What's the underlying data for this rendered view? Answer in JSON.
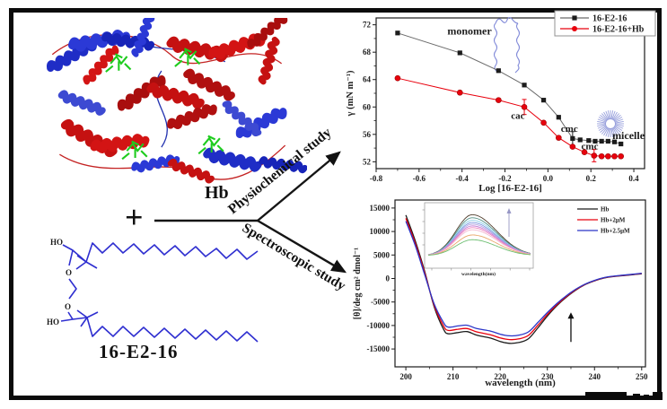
{
  "figure": {
    "hb_label": "Hb",
    "plus_sign": "+",
    "surfactant_label": "16-E2-16",
    "physiochemical_label": "Physiochemical study",
    "spectroscopic_label": "Spectroscopic study",
    "molecule_atoms": {
      "ho_top": "HO",
      "o_top": "O",
      "o_bottom": "O",
      "ho_bottom": "HO"
    }
  },
  "chart_data": [
    {
      "id": "surface-tension-plot",
      "type": "scatter",
      "xlabel": "Log [16-E2-16]",
      "ylabel": "γ (mN m⁻¹)",
      "xlim": [
        -0.8,
        0.45
      ],
      "ylim": [
        51,
        73
      ],
      "xticks": [
        -0.8,
        -0.6,
        -0.4,
        -0.2,
        0.0,
        0.2,
        0.4
      ],
      "xtick_labels": [
        "-0.8",
        "-0.6",
        "-0.4",
        "-0.2",
        "0.0",
        "0.2",
        "0.4"
      ],
      "yticks": [
        52,
        56,
        60,
        64,
        68,
        72
      ],
      "series": [
        {
          "name": "16-E2-16",
          "marker": "square",
          "marker_color": "#1c1c1c",
          "line_color": "#6a6a6a",
          "x": [
            -0.7,
            -0.41,
            -0.23,
            -0.11,
            -0.02,
            0.05,
            0.115,
            0.15,
            0.19,
            0.22,
            0.25,
            0.28,
            0.31,
            0.34
          ],
          "y": [
            70.8,
            67.9,
            65.3,
            63.2,
            61.0,
            58.5,
            55.4,
            55.2,
            55.1,
            55.0,
            55.0,
            55.0,
            54.9,
            54.6
          ],
          "error_bars": [
            {
              "x": 0.115,
              "y": 55.4,
              "e": 1.0
            }
          ]
        },
        {
          "name": "16-E2-16+Hb",
          "marker": "circle",
          "marker_color": "#e8000d",
          "line_color": "#e8000d",
          "x": [
            -0.7,
            -0.41,
            -0.23,
            -0.11,
            -0.02,
            0.05,
            0.115,
            0.17,
            0.215,
            0.25,
            0.28,
            0.31,
            0.34
          ],
          "y": [
            64.2,
            62.1,
            61.0,
            60.0,
            57.7,
            55.5,
            54.2,
            53.4,
            52.9,
            52.8,
            52.8,
            52.8,
            52.8
          ],
          "error_bars": [
            {
              "x": -0.11,
              "y": 60.0,
              "e": 1.1
            },
            {
              "x": 0.215,
              "y": 52.9,
              "e": 0.9
            }
          ]
        }
      ],
      "annotations": [
        {
          "text": "monomer",
          "x": -0.365,
          "y": 70.6,
          "size": 12,
          "color": "#3a3a3a"
        },
        {
          "text": "cac",
          "x": -0.14,
          "y": 58.3,
          "size": 11,
          "color": "#1c1c1c"
        },
        {
          "text": "cmc",
          "x": 0.1,
          "y": 56.4,
          "size": 11,
          "color": "#1c1c1c"
        },
        {
          "text": "cmc",
          "x": 0.195,
          "y": 53.8,
          "size": 11,
          "color": "#1c1c1c"
        },
        {
          "text": "micelle",
          "x": 0.375,
          "y": 55.3,
          "size": 12,
          "color": "#1c1c1c"
        }
      ],
      "legend": [
        {
          "label": "16-E2-16",
          "line_color": "#6a6a6a",
          "marker": "square",
          "marker_color": "#1c1c1c",
          "text_color": "#00008b"
        },
        {
          "label": "16-E2-16+Hb",
          "line_color": "#e8000d",
          "marker": "circle",
          "marker_color": "#e8000d",
          "text_color": "#9b0000"
        }
      ],
      "decorations": {
        "monomer_color": "#8089d8",
        "micelle_color": "#98a0dc"
      }
    },
    {
      "id": "cd-spectra-plot",
      "type": "line",
      "xlabel": "wavelength (nm)",
      "ylabel": "[θ]/deg cm² dmol⁻¹",
      "xlim": [
        197.7,
        250.8
      ],
      "ylim": [
        -18800,
        16700
      ],
      "xticks": [
        200,
        210,
        220,
        230,
        240,
        250
      ],
      "yticks": [
        -15000,
        -10000,
        -5000,
        0,
        5000,
        10000,
        15000
      ],
      "x": [
        200,
        202,
        204,
        206,
        208,
        209,
        211,
        213,
        215,
        218,
        220,
        222,
        224,
        226,
        228,
        230,
        232,
        234,
        236,
        238,
        240,
        242,
        244,
        246,
        248,
        250
      ],
      "series": [
        {
          "name": "Hb",
          "color": "#1c1c1c",
          "y": [
            13500,
            8000,
            1500,
            -6000,
            -10800,
            -11750,
            -11500,
            -11300,
            -12050,
            -12700,
            -13400,
            -13800,
            -13600,
            -12800,
            -10500,
            -8000,
            -5800,
            -4000,
            -2500,
            -1300,
            -500,
            100,
            400,
            600,
            800,
            1000
          ]
        },
        {
          "name": "Hb+2μM",
          "color": "#e8000d",
          "y": [
            12800,
            7500,
            1200,
            -5700,
            -10100,
            -11050,
            -10800,
            -10650,
            -11350,
            -12000,
            -12650,
            -13000,
            -12850,
            -12100,
            -9950,
            -7650,
            -5600,
            -3850,
            -2400,
            -1250,
            -450,
            150,
            450,
            650,
            850,
            1050
          ]
        },
        {
          "name": "Hb+2.5μM",
          "color": "#2a35c8",
          "y": [
            12200,
            7000,
            800,
            -5400,
            -9400,
            -10350,
            -10100,
            -9950,
            -10650,
            -11200,
            -11850,
            -12200,
            -12050,
            -11350,
            -9350,
            -7250,
            -5350,
            -3700,
            -2300,
            -1200,
            -400,
            200,
            500,
            700,
            900,
            1100
          ]
        }
      ],
      "legend_text_color": "#26266b",
      "arrow": {
        "x": 235,
        "from": -13500,
        "to": -7200
      },
      "inset": {
        "xlabel": "wavelength(nm)",
        "peak_heights": [
          0.95,
          0.88,
          0.82,
          0.77,
          0.73,
          0.69,
          0.65,
          0.6,
          0.48,
          0.37
        ],
        "curve_colors": [
          "#4e3b2a",
          "#4f8f85",
          "#8fd0e8",
          "#7b96e0",
          "#b7a6e2",
          "#c77fd6",
          "#ef86c0",
          "#f4b8d0",
          "#e8a66a",
          "#6fbf73"
        ],
        "arrow_direction": "up"
      }
    }
  ]
}
